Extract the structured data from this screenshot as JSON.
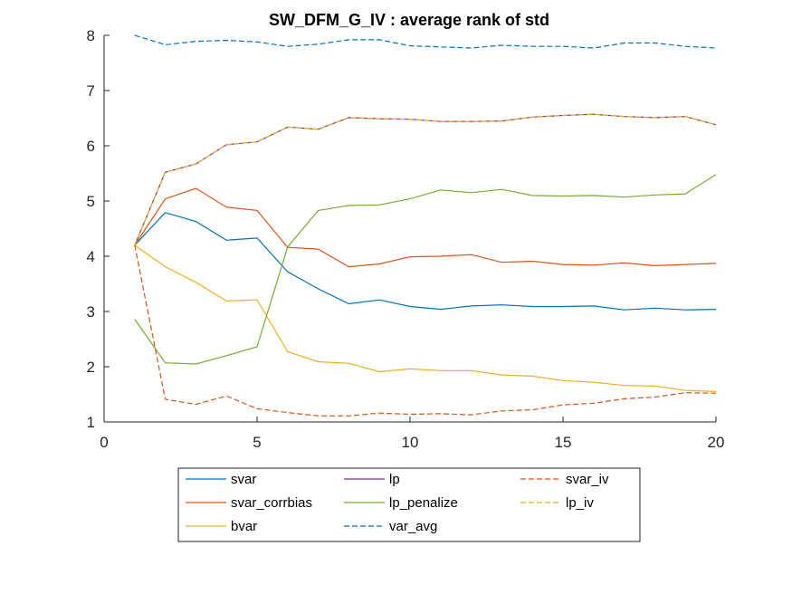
{
  "chart_data": {
    "type": "line",
    "title": "SW_DFM_G_IV : average rank of std",
    "xlabel": "",
    "ylabel": "",
    "xlim": [
      0,
      20
    ],
    "ylim": [
      1,
      8
    ],
    "xticks": [
      0,
      5,
      10,
      15,
      20
    ],
    "yticks": [
      1,
      2,
      3,
      4,
      5,
      6,
      7,
      8
    ],
    "grid": false,
    "legend_position": "bottom-outside",
    "x": [
      1,
      2,
      3,
      4,
      5,
      6,
      7,
      8,
      9,
      10,
      11,
      12,
      13,
      14,
      15,
      16,
      17,
      18,
      19,
      20
    ],
    "series": [
      {
        "name": "svar",
        "color": "#0072BD",
        "style": "solid",
        "values": [
          4.2,
          4.79,
          4.63,
          4.29,
          4.33,
          3.72,
          3.41,
          3.14,
          3.21,
          3.09,
          3.04,
          3.1,
          3.12,
          3.09,
          3.09,
          3.1,
          3.03,
          3.06,
          3.03,
          3.04
        ]
      },
      {
        "name": "svar_corrbias",
        "color": "#D95319",
        "style": "solid",
        "values": [
          4.2,
          5.04,
          5.23,
          4.89,
          4.83,
          4.16,
          4.13,
          3.81,
          3.86,
          3.99,
          4.0,
          4.03,
          3.89,
          3.91,
          3.85,
          3.84,
          3.88,
          3.83,
          3.85,
          3.87
        ]
      },
      {
        "name": "bvar",
        "color": "#EDB120",
        "style": "solid",
        "values": [
          4.2,
          3.81,
          3.53,
          3.19,
          3.21,
          2.27,
          2.09,
          2.06,
          1.91,
          1.96,
          1.93,
          1.93,
          1.85,
          1.83,
          1.75,
          1.72,
          1.66,
          1.65,
          1.57,
          1.55
        ]
      },
      {
        "name": "lp",
        "color": "#7E2F8E",
        "style": "solid",
        "values": [
          4.2,
          5.52,
          5.67,
          6.02,
          6.07,
          6.34,
          6.3,
          6.51,
          6.49,
          6.48,
          6.44,
          6.44,
          6.45,
          6.52,
          6.55,
          6.57,
          6.53,
          6.51,
          6.53,
          6.38
        ]
      },
      {
        "name": "lp_penalize",
        "color": "#77AC30",
        "style": "solid",
        "values": [
          2.86,
          2.07,
          2.05,
          2.2,
          2.36,
          4.17,
          4.83,
          4.92,
          4.93,
          5.04,
          5.2,
          5.15,
          5.21,
          5.1,
          5.09,
          5.1,
          5.07,
          5.11,
          5.13,
          5.48
        ]
      },
      {
        "name": "var_avg",
        "color": "#4DBEEE",
        "style": "dashed",
        "stroke_color": "#0072BD",
        "values": [
          8.0,
          7.83,
          7.89,
          7.91,
          7.88,
          7.8,
          7.84,
          7.92,
          7.92,
          7.81,
          7.79,
          7.77,
          7.82,
          7.8,
          7.8,
          7.77,
          7.86,
          7.86,
          7.8,
          7.77
        ]
      },
      {
        "name": "svar_iv",
        "color": "#D95319",
        "style": "dashed",
        "values": [
          4.2,
          1.41,
          1.32,
          1.47,
          1.24,
          1.17,
          1.11,
          1.11,
          1.16,
          1.14,
          1.15,
          1.13,
          1.2,
          1.22,
          1.31,
          1.34,
          1.42,
          1.45,
          1.53,
          1.52
        ]
      },
      {
        "name": "lp_iv",
        "color": "#EDB120",
        "style": "dashed",
        "values": [
          4.2,
          5.52,
          5.67,
          6.02,
          6.07,
          6.34,
          6.3,
          6.51,
          6.49,
          6.48,
          6.44,
          6.44,
          6.45,
          6.52,
          6.55,
          6.57,
          6.53,
          6.51,
          6.53,
          6.38
        ]
      }
    ],
    "legend_layout": [
      [
        "svar",
        "lp",
        "svar_iv"
      ],
      [
        "svar_corrbias",
        "lp_penalize",
        "lp_iv"
      ],
      [
        "bvar",
        "var_avg"
      ]
    ]
  }
}
